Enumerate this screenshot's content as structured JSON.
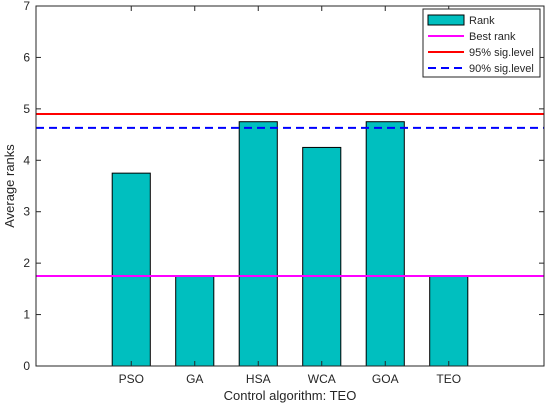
{
  "chart_data": {
    "type": "bar",
    "categories": [
      "PSO",
      "GA",
      "HSA",
      "WCA",
      "GOA",
      "TEO"
    ],
    "values": [
      3.75,
      1.75,
      4.75,
      4.25,
      4.75,
      1.75
    ],
    "xlabel": "Control algorithm: TEO",
    "ylabel": "Average ranks",
    "ylim": [
      0,
      7
    ],
    "yticks": [
      0,
      1,
      2,
      3,
      4,
      5,
      6,
      7
    ],
    "grid": false,
    "legend_position": "top-right",
    "bar_color": "#00bfbf",
    "reference_lines": [
      {
        "name": "Best rank",
        "value": 1.75,
        "color": "#ff00ff",
        "style": "solid"
      },
      {
        "name": "95% sig.level",
        "value": 4.9,
        "color": "#ff0000",
        "style": "solid"
      },
      {
        "name": "90% sig.level",
        "value": 4.63,
        "color": "#0000ff",
        "style": "dashed"
      }
    ],
    "legend": [
      "Rank",
      "Best rank",
      "95% sig.level",
      "90% sig.level"
    ]
  }
}
